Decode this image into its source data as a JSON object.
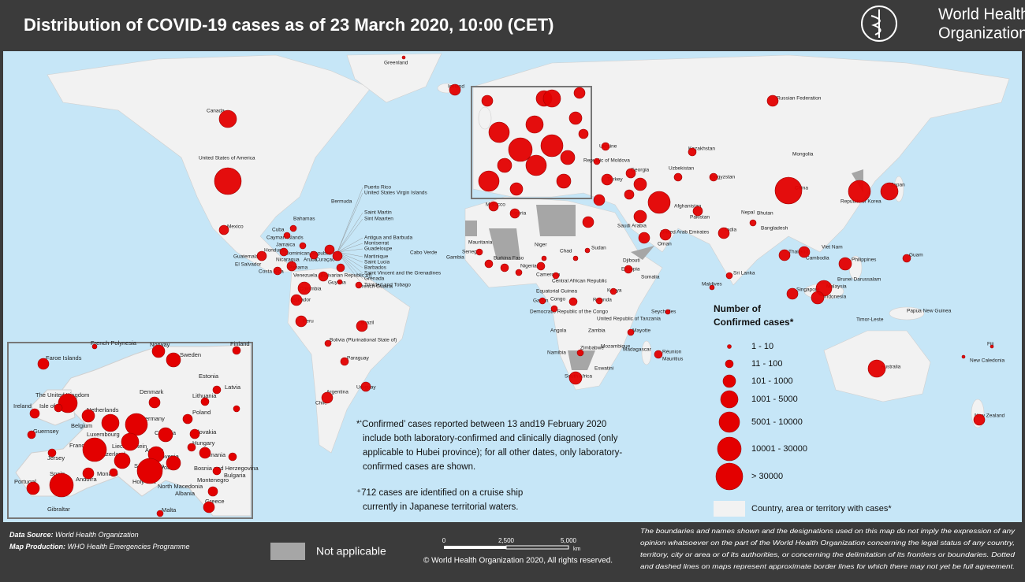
{
  "header": {
    "title": "Distribution of COVID-19  cases as of 23 March 2020, 10:00 (CET)",
    "logo": [
      "World Health",
      "Organization"
    ]
  },
  "map": {
    "labels": [
      "Greenland",
      "Iceland",
      "Canada",
      "United States of America",
      "Mexico",
      "Bahamas",
      "Cuba",
      "Cayman Islands",
      "Bermuda",
      "Honduras",
      "Jamaica",
      "Dominican Republic",
      "Guatemala",
      "Nicaragua",
      "Aruba",
      "Curaçao",
      "El Salvador",
      "Panama",
      "Costa Rica",
      "Venezuela (Bolivarian Republic of)",
      "Guyana",
      "French Guiana",
      "Colombia",
      "Ecuador",
      "Peru",
      "Brazil",
      "Bolivia (Plurinational State of)",
      "Paraguay",
      "Uruguay",
      "Argentina",
      "Chile",
      "Puerto Rico",
      "United States Virgin Islands",
      "Saint Martin",
      "Sint Maarten",
      "Antigua and Barbuda",
      "Montserrat",
      "Guadeloupe",
      "Martinique",
      "Saint Lucia",
      "Barbados",
      "Saint Vincent and the Grenadines",
      "Grenada",
      "Trinidad and Tobago",
      "Cabo Verde",
      "Gambia",
      "Senegal",
      "Mauritania",
      "Morocco",
      "Algeria",
      "Niger",
      "Chad",
      "Sudan",
      "Djibouti",
      "Ethiopia",
      "Somalia",
      "Nigeria",
      "Burkina Faso",
      "Cameroon",
      "Central African Republic",
      "Equatorial Guinea",
      "Gabon",
      "Congo",
      "Democratic Republic of the Congo",
      "Rwanda",
      "Kenya",
      "United Republic of Tanzania",
      "Seychelles",
      "Angola",
      "Zambia",
      "Namibia",
      "Zimbabwe",
      "Mozambique",
      "Mayotte",
      "Madagascar",
      "Réunion",
      "Mauritius",
      "Eswatini",
      "South Africa",
      "Russian Federation",
      "Ukraine",
      "Republic of Moldova",
      "Kazakhstan",
      "Mongolia",
      "Georgia",
      "Uzbekistan",
      "Kyrgyzstan",
      "Turkey",
      "China",
      "Republic of Korea",
      "Japan",
      "Afghanistan",
      "Pakistan",
      "Nepal",
      "Bhutan",
      "India",
      "Bangladesh",
      "Saudi Arabia",
      "United Arab Emirates",
      "Oman",
      "Viet Nam",
      "Thailand",
      "Cambodia",
      "Philippines",
      "Guam",
      "Sri Lanka",
      "Maldives",
      "Brunei Darussalam",
      "Malaysia",
      "Singapore",
      "Indonesia",
      "Timor-Leste",
      "Papua New Guinea",
      "Australia",
      "Fiji",
      "New Caledonia",
      "New Zealand"
    ],
    "inset_labels": [
      "French Polynesia",
      "Norway",
      "Finland",
      "Faroe Islands",
      "Sweden",
      "Estonia",
      "Latvia",
      "The United Kingdom",
      "Denmark",
      "Lithuania",
      "Ireland",
      "Isle of Man",
      "Netherlands",
      "Poland",
      "Germany",
      "Belgium",
      "Guernsey",
      "Luxembourg",
      "Czechia",
      "Slovakia",
      "France",
      "Liechtenstein",
      "Hungary",
      "Austria",
      "Switzerland",
      "Slovenia",
      "Romania",
      "Jersey",
      "Croatia",
      "San Marino",
      "Bosnia and Herzegovina",
      "Italy",
      "Monaco",
      "Bulgaria",
      "Spain",
      "Andorra",
      "Montenegro",
      "Portugal",
      "Holy See",
      "North Macedonia",
      "Albania",
      "Greece",
      "Gibraltar",
      "Malta"
    ]
  },
  "legend": {
    "title": [
      "Number of",
      "Confirmed cases*"
    ],
    "classes": [
      "1 - 10",
      "11 - 100",
      "101 - 1000",
      "1001 - 5000",
      "5001 - 10000",
      "10001 - 30000",
      "> 30000"
    ],
    "with_cases": "Country, area or territory with cases*"
  },
  "notes": {
    "confirmed": [
      "*‘Confirmed’ cases reported between 13 and19 February 2020",
      "include both laboratory-confirmed and clinically diagnosed (only",
      "applicable to Hubei province); for all other dates, only laboratory-",
      "confirmed cases are shown."
    ],
    "cruise": [
      "⁺712 cases are identified on a cruise ship",
      "currently in Japanese territorial waters."
    ]
  },
  "footer": {
    "data_source": {
      "label": "Data Source:",
      "text": "World Health Organization"
    },
    "map_production": {
      "label": "Map Production:",
      "text": "WHO Health Emergencies Programme"
    },
    "not_applicable": "Not applicable",
    "scale": [
      "0",
      "2,500",
      "5,000",
      "km"
    ],
    "copyright": "© World Health Organization  2020,  All rights reserved.",
    "disclaimer": [
      "The boundaries and names shown and the designations used on this map do not imply the expression of any",
      "opinion whatsoever on the part of the World Health Organization concerning the legal status of any country,",
      "territory, city or area or of its authorities, or concerning the delimitation of its frontiers or boundaries. Dotted",
      "and dashed lines on maps represent approximate border lines for which there may not yet be full agreement."
    ]
  }
}
